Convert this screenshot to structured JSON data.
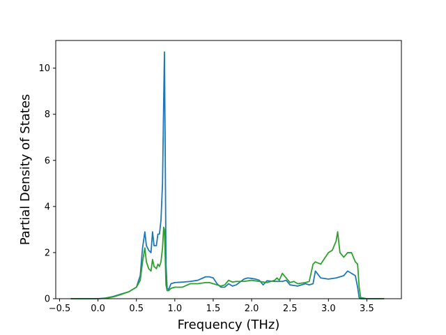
{
  "chart_data": {
    "type": "line",
    "title": "",
    "xlabel": "Frequency (THz)",
    "ylabel": "Partial Density of States",
    "xlim": [
      -0.55,
      3.95
    ],
    "ylim": [
      0,
      11.2
    ],
    "x_ticks": [
      -0.5,
      0.0,
      0.5,
      1.0,
      1.5,
      2.0,
      2.5,
      3.0,
      3.5
    ],
    "x_tick_labels": [
      "−0.5",
      "0.0",
      "0.5",
      "1.0",
      "1.5",
      "2.0",
      "2.5",
      "3.0",
      "3.5"
    ],
    "y_ticks": [
      0,
      2,
      4,
      6,
      8,
      10
    ],
    "y_tick_labels": [
      "0",
      "2",
      "4",
      "6",
      "8",
      "10"
    ],
    "grid": false,
    "legend": "none",
    "series": [
      {
        "color": "#1f77b4",
        "x": [
          -0.35,
          -0.2,
          0.0,
          0.1,
          0.2,
          0.3,
          0.4,
          0.5,
          0.55,
          0.58,
          0.61,
          0.63,
          0.66,
          0.69,
          0.71,
          0.73,
          0.76,
          0.78,
          0.8,
          0.82,
          0.84,
          0.855,
          0.865,
          0.875,
          0.885,
          0.9,
          0.92,
          0.95,
          1.0,
          1.1,
          1.2,
          1.3,
          1.4,
          1.45,
          1.5,
          1.55,
          1.6,
          1.65,
          1.7,
          1.75,
          1.8,
          1.9,
          1.95,
          2.0,
          2.05,
          2.1,
          2.15,
          2.2,
          2.3,
          2.4,
          2.45,
          2.5,
          2.6,
          2.7,
          2.75,
          2.8,
          2.83,
          2.9,
          3.0,
          3.1,
          3.2,
          3.25,
          3.3,
          3.35,
          3.38,
          3.4,
          3.42,
          3.5,
          3.72
        ],
        "values": [
          0,
          0,
          0,
          0.03,
          0.1,
          0.2,
          0.3,
          0.5,
          1.0,
          2.2,
          2.9,
          2.3,
          2.1,
          2.0,
          2.9,
          2.3,
          2.3,
          2.8,
          2.8,
          3.4,
          5.0,
          8.5,
          10.7,
          6.5,
          1.5,
          0.45,
          0.4,
          0.65,
          0.7,
          0.72,
          0.75,
          0.8,
          0.95,
          0.95,
          0.9,
          0.65,
          0.5,
          0.5,
          0.65,
          0.55,
          0.6,
          0.85,
          0.9,
          0.88,
          0.85,
          0.8,
          0.6,
          0.78,
          0.75,
          0.75,
          0.8,
          0.6,
          0.55,
          0.65,
          0.6,
          0.65,
          1.2,
          0.9,
          0.85,
          0.9,
          1.0,
          1.2,
          1.1,
          1.0,
          0.5,
          0.05,
          0,
          0,
          0
        ]
      },
      {
        "color": "#2ca02c",
        "x": [
          -0.35,
          -0.2,
          0.0,
          0.1,
          0.2,
          0.3,
          0.4,
          0.5,
          0.55,
          0.58,
          0.61,
          0.63,
          0.66,
          0.69,
          0.71,
          0.73,
          0.76,
          0.78,
          0.8,
          0.82,
          0.84,
          0.855,
          0.865,
          0.875,
          0.885,
          0.9,
          0.92,
          0.95,
          1.0,
          1.1,
          1.2,
          1.3,
          1.4,
          1.45,
          1.5,
          1.55,
          1.6,
          1.65,
          1.7,
          1.75,
          1.8,
          1.9,
          2.0,
          2.1,
          2.2,
          2.3,
          2.33,
          2.36,
          2.4,
          2.45,
          2.5,
          2.55,
          2.6,
          2.7,
          2.75,
          2.8,
          2.83,
          2.9,
          3.0,
          3.05,
          3.1,
          3.12,
          3.15,
          3.2,
          3.25,
          3.3,
          3.35,
          3.38,
          3.4,
          3.42,
          3.5,
          3.72
        ],
        "values": [
          0,
          0,
          0,
          0.02,
          0.08,
          0.18,
          0.3,
          0.5,
          0.8,
          1.6,
          2.2,
          1.6,
          1.3,
          1.2,
          1.7,
          1.4,
          1.3,
          1.5,
          1.4,
          1.6,
          2.2,
          3.1,
          3.0,
          1.8,
          0.6,
          0.35,
          0.35,
          0.45,
          0.5,
          0.5,
          0.65,
          0.65,
          0.7,
          0.7,
          0.65,
          0.6,
          0.55,
          0.6,
          0.8,
          0.72,
          0.75,
          0.75,
          0.8,
          0.75,
          0.7,
          0.8,
          0.9,
          0.8,
          1.1,
          0.9,
          0.7,
          0.75,
          0.65,
          0.7,
          0.75,
          1.5,
          1.6,
          1.5,
          2.0,
          2.1,
          2.5,
          2.9,
          2.0,
          1.8,
          2.0,
          2.0,
          1.6,
          1.5,
          0.5,
          0.05,
          0,
          0
        ]
      }
    ]
  }
}
